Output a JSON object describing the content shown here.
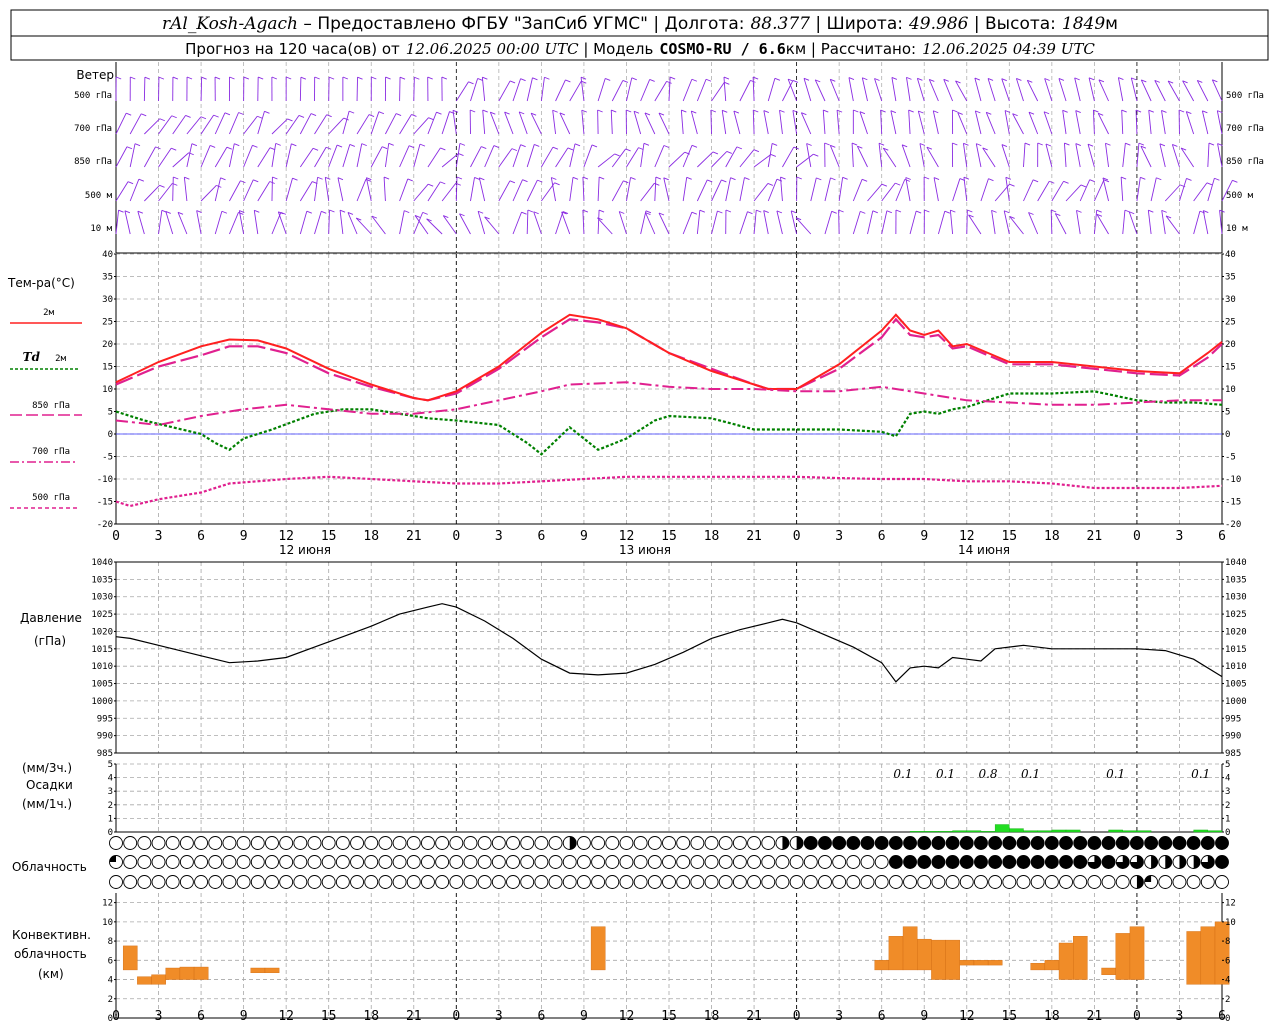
{
  "header": {
    "station": "rAl_Kosh-Agach",
    "dash": " – ",
    "provider": "Предоставлено ФГБУ \"ЗапСиб УГМС\"",
    "lon_label": "Долгота:",
    "lon_value": "88.377",
    "lat_label": "Широта:",
    "lat_value": "49.986",
    "alt_label": "Высота:",
    "alt_value": "1849",
    "alt_unit": "м",
    "forecast_prefix": "Прогноз на 120 часа(ов) от",
    "forecast_time": "12.06.2025 00:00 UTC",
    "model_label": "Модель",
    "model_value": "COSMO-RU / 6.6",
    "model_unit": "км",
    "computed_label": "Рассчитано:",
    "computed_time": "12.06.2025 04:39 UTC"
  },
  "wind_panel": {
    "title": "Ветер",
    "levels": [
      "500 гПа",
      "700 гПа",
      "850 гПа",
      "500 м",
      "10 м"
    ],
    "color": "#8a2be2"
  },
  "temp_panel": {
    "title": "Тем-ра(°C)",
    "legend": [
      {
        "label": "2м",
        "color": "#ff2020",
        "dash": "solid"
      },
      {
        "label_italic": "Td",
        "label": "2м",
        "color": "#008000",
        "dash": "dotted"
      },
      {
        "label": "850 гПа",
        "color": "#e0208f",
        "dash": "longdash"
      },
      {
        "label": "700 гПа",
        "color": "#e0208f",
        "dash": "dashdot"
      },
      {
        "label": "500 гПа",
        "color": "#e0208f",
        "dash": "dotted"
      }
    ],
    "yticks": [
      "40",
      "35",
      "30",
      "25",
      "20",
      "15",
      "10",
      "5",
      "0",
      "-5",
      "-10",
      "-15",
      "-20"
    ]
  },
  "pressure_panel": {
    "title": "Давление",
    "unit": "(гПа)",
    "yticks": [
      "1040",
      "1035",
      "1030",
      "1025",
      "1020",
      "1015",
      "1010",
      "1005",
      "1000",
      "995",
      "990",
      "985"
    ]
  },
  "precip_panel": {
    "unit3": "(мм/3ч.)",
    "title": "Осадки",
    "unit1": "(мм/1ч.)",
    "yticks": [
      "5",
      "4",
      "3",
      "2",
      "1",
      "0"
    ],
    "labels": [
      "0.1",
      "0.1",
      "0.8",
      "0.1",
      "0.1",
      "0.1"
    ]
  },
  "cloud_panel": {
    "title": "Облачность"
  },
  "conv_panel": {
    "title1": "Конвективн.",
    "title2": "облачность",
    "unit": "(км)",
    "yticks": [
      "12",
      "10",
      "8",
      "6",
      "4",
      "2",
      "0"
    ]
  },
  "xaxis": {
    "ticks": [
      "0",
      "3",
      "6",
      "9",
      "12",
      "15",
      "18",
      "21",
      "0",
      "3",
      "6",
      "9",
      "12",
      "15",
      "18",
      "21",
      "0",
      "3",
      "6",
      "9",
      "12",
      "15",
      "18",
      "21",
      "0",
      "3",
      "6"
    ],
    "days": [
      "12 июня",
      "13 июня",
      "14 июня"
    ]
  },
  "chart_data": {
    "type": "line",
    "x_unit": "hours since 12.06.2025 00:00 UTC",
    "x_range": [
      0,
      78
    ],
    "temperature": {
      "ylim": [
        -20,
        40
      ],
      "series": [
        {
          "name": "2м",
          "x": [
            0,
            3,
            6,
            8,
            10,
            12,
            15,
            18,
            21,
            22,
            24,
            27,
            30,
            32,
            34,
            36,
            39,
            42,
            45,
            46,
            48,
            51,
            54,
            55,
            56,
            57,
            58,
            59,
            60,
            63,
            66,
            69,
            72,
            75,
            77,
            78
          ],
          "values": [
            11.5,
            16,
            19.5,
            21,
            20.8,
            19,
            14.5,
            11,
            8,
            7.5,
            9.5,
            15,
            22.5,
            26.5,
            25.5,
            23.5,
            18,
            14,
            11,
            10,
            10,
            15.5,
            23,
            26.5,
            23,
            22,
            23,
            19.5,
            20,
            16,
            16,
            15,
            14,
            13.5,
            18,
            20.5
          ]
        },
        {
          "name": "Td 2м",
          "x": [
            0,
            2,
            4,
            6,
            7,
            8,
            9,
            11,
            14,
            16,
            18,
            20,
            21,
            22,
            24,
            27,
            29,
            30,
            32,
            33,
            34,
            36,
            38,
            39,
            42,
            45,
            48,
            51,
            54,
            55,
            56,
            57,
            58,
            59,
            60,
            61,
            63,
            66,
            69,
            72,
            74,
            76,
            78
          ],
          "values": [
            5,
            3,
            1.5,
            0,
            -2,
            -3.5,
            -1,
            1,
            4.5,
            5.5,
            5.5,
            4.5,
            4,
            3.5,
            3,
            2,
            -2,
            -4.5,
            1.5,
            -1,
            -3.5,
            -1,
            3,
            4,
            3.5,
            1,
            1,
            1,
            0.5,
            -0.5,
            4.5,
            5,
            4.5,
            5.5,
            6,
            7,
            9,
            9,
            9.5,
            7.5,
            7,
            7,
            6.5
          ]
        },
        {
          "name": "850 гПа",
          "x": [
            0,
            3,
            6,
            8,
            10,
            12,
            15,
            18,
            21,
            22,
            24,
            27,
            30,
            32,
            34,
            36,
            39,
            42,
            45,
            46,
            48,
            51,
            54,
            55,
            56,
            57,
            58,
            59,
            60,
            63,
            66,
            69,
            72,
            75,
            77,
            78
          ],
          "values": [
            11,
            15,
            17.5,
            19.5,
            19.5,
            18,
            13.5,
            10.5,
            8,
            7.5,
            9,
            14.5,
            21.5,
            25.5,
            24.8,
            23.5,
            18,
            14.5,
            11,
            10,
            10,
            14.5,
            21.5,
            25.5,
            22,
            21.5,
            22,
            19,
            19.5,
            15.5,
            15.5,
            14.5,
            13.5,
            13,
            17,
            20
          ]
        },
        {
          "name": "700 гПа",
          "x": [
            0,
            3,
            6,
            9,
            12,
            15,
            18,
            21,
            24,
            27,
            30,
            32,
            36,
            39,
            42,
            45,
            48,
            51,
            54,
            57,
            60,
            63,
            66,
            69,
            72,
            75,
            78
          ],
          "values": [
            3,
            2,
            4,
            5.5,
            6.5,
            5.5,
            4.5,
            4.5,
            5.5,
            7.5,
            9.5,
            11,
            11.5,
            10.5,
            10,
            10,
            9.5,
            9.5,
            10.5,
            9,
            7.5,
            7,
            6.5,
            6.5,
            7,
            7.5,
            7.5
          ]
        },
        {
          "name": "500 гПа",
          "x": [
            0,
            1,
            3,
            6,
            8,
            12,
            15,
            18,
            21,
            24,
            27,
            30,
            33,
            36,
            39,
            42,
            45,
            48,
            51,
            54,
            57,
            60,
            63,
            66,
            69,
            72,
            75,
            78
          ],
          "values": [
            -15,
            -16,
            -14.5,
            -13,
            -11,
            -10,
            -9.5,
            -10,
            -10.5,
            -11,
            -11,
            -10.5,
            -10,
            -9.5,
            -9.5,
            -9.5,
            -9.5,
            -9.5,
            -9.8,
            -10,
            -10,
            -10.5,
            -10.5,
            -11,
            -12,
            -12,
            -12,
            -11.5
          ]
        }
      ]
    },
    "pressure": {
      "ylim": [
        985,
        1040
      ],
      "x": [
        0,
        1,
        3,
        6,
        8,
        10,
        12,
        14,
        16,
        18,
        20,
        22,
        23,
        24,
        26,
        28,
        30,
        32,
        34,
        36,
        38,
        40,
        42,
        44,
        46,
        47,
        48,
        50,
        52,
        54,
        55,
        56,
        57,
        58,
        59,
        60,
        61,
        62,
        64,
        66,
        68,
        70,
        72,
        74,
        76,
        78
      ],
      "values": [
        1018.5,
        1018,
        1016,
        1013,
        1011,
        1011.5,
        1012.5,
        1015.5,
        1018.5,
        1021.5,
        1025,
        1027,
        1028,
        1027,
        1023,
        1018,
        1012,
        1008,
        1007.5,
        1008,
        1010.5,
        1014,
        1018,
        1020.5,
        1022.5,
        1023.5,
        1022.5,
        1019,
        1015.5,
        1011,
        1005.5,
        1009.5,
        1010,
        1009.5,
        1012.5,
        1012,
        1011.5,
        1015,
        1016,
        1015,
        1015,
        1015,
        1015,
        1014.5,
        1012,
        1007
      ]
    },
    "precip_1h": {
      "ylim": [
        0,
        5
      ],
      "x": [
        56,
        57,
        58,
        59,
        60,
        61,
        62,
        63,
        64,
        65,
        66,
        67,
        70,
        71,
        72,
        76,
        77
      ],
      "values": [
        0.05,
        0.05,
        0.05,
        0.1,
        0.1,
        0.05,
        0.55,
        0.25,
        0.1,
        0.1,
        0.15,
        0.15,
        0.15,
        0.1,
        0.1,
        0.15,
        0.1
      ]
    },
    "precip_3h_labels": {
      "x": [
        55.5,
        58.5,
        61.5,
        64.5,
        70.5,
        76.5
      ],
      "values": [
        0.1,
        0.1,
        0.8,
        0.1,
        0.1,
        0.1
      ]
    },
    "cloud_cover_octas": {
      "x": [
        0,
        1,
        2,
        3,
        4,
        5,
        6,
        7,
        8,
        9,
        10,
        11,
        12,
        13,
        14,
        15,
        16,
        17,
        18,
        19,
        20,
        21,
        22,
        23,
        24,
        25,
        26,
        27,
        28,
        29,
        30,
        31,
        32,
        33,
        34,
        35,
        36,
        37,
        38,
        39,
        40,
        41,
        42,
        43,
        44,
        45,
        46,
        47,
        48,
        49,
        50,
        51,
        52,
        53,
        54,
        55,
        56,
        57,
        58,
        59,
        60,
        61,
        62,
        63,
        64,
        65,
        66,
        67,
        68,
        69,
        70,
        71,
        72,
        73,
        74,
        75,
        76,
        77,
        78
      ],
      "high": [
        0,
        0,
        0,
        0,
        0,
        0,
        0,
        0,
        0,
        0,
        0,
        0,
        0,
        0,
        0,
        0,
        0,
        0,
        0,
        0,
        0,
        0,
        0,
        0,
        0,
        0,
        0,
        0,
        0,
        0,
        0,
        0,
        4,
        0,
        0,
        0,
        0,
        0,
        0,
        0,
        0,
        0,
        0,
        0,
        0,
        0,
        0,
        4,
        4,
        8,
        8,
        8,
        8,
        8,
        8,
        8,
        8,
        8,
        8,
        8,
        8,
        8,
        8,
        8,
        8,
        8,
        8,
        8,
        8,
        8,
        8,
        8,
        8,
        8,
        8,
        8,
        8,
        8,
        8
      ],
      "middle": [
        3,
        0,
        0,
        0,
        0,
        0,
        0,
        0,
        0,
        0,
        0,
        0,
        0,
        0,
        0,
        0,
        0,
        0,
        0,
        0,
        0,
        0,
        0,
        0,
        0,
        0,
        0,
        0,
        0,
        0,
        0,
        0,
        0,
        0,
        0,
        0,
        0,
        0,
        0,
        0,
        0,
        0,
        0,
        0,
        0,
        0,
        0,
        0,
        0,
        0,
        0,
        0,
        0,
        0,
        0,
        8,
        8,
        8,
        8,
        8,
        8,
        8,
        8,
        8,
        8,
        8,
        8,
        8,
        8,
        6,
        8,
        6,
        6,
        4,
        4,
        4,
        4,
        6,
        8
      ],
      "low": [
        0,
        0,
        0,
        0,
        0,
        0,
        0,
        0,
        0,
        0,
        0,
        0,
        0,
        0,
        0,
        0,
        0,
        0,
        0,
        0,
        0,
        0,
        0,
        0,
        0,
        0,
        0,
        0,
        0,
        0,
        0,
        0,
        0,
        0,
        0,
        0,
        0,
        0,
        0,
        0,
        0,
        0,
        0,
        0,
        0,
        0,
        0,
        0,
        0,
        0,
        0,
        0,
        0,
        0,
        0,
        0,
        0,
        0,
        0,
        0,
        0,
        0,
        0,
        0,
        0,
        0,
        0,
        0,
        0,
        0,
        0,
        0,
        4,
        3,
        0,
        0,
        0,
        0,
        0
      ]
    },
    "convective_cloud_km": {
      "ylim": [
        0,
        13
      ],
      "x": [
        1,
        2,
        3,
        4,
        5,
        6,
        10,
        11,
        34,
        54,
        55,
        56,
        57,
        58,
        59,
        60,
        61,
        62,
        63,
        65,
        66,
        67,
        68,
        69,
        70,
        71,
        72,
        73,
        76,
        77,
        78
      ],
      "base": [
        5,
        3.5,
        3.5,
        4,
        4,
        4,
        4.7,
        4.7,
        5,
        5,
        5,
        5,
        5,
        4,
        4,
        5.5,
        5.5,
        5.5,
        0,
        5,
        5,
        4,
        4,
        0,
        4.5,
        4,
        4,
        0,
        3.5,
        3.5,
        3.5
      ],
      "top": [
        7.5,
        4.3,
        4.5,
        5.2,
        5.3,
        5.3,
        5.2,
        5.2,
        9.5,
        6,
        8.5,
        9.5,
        8.2,
        8.1,
        8.1,
        6,
        6,
        6,
        0,
        5.7,
        6,
        7.8,
        8.5,
        0,
        5.2,
        8.8,
        9.5,
        0,
        9,
        9.5,
        10
      ]
    }
  }
}
